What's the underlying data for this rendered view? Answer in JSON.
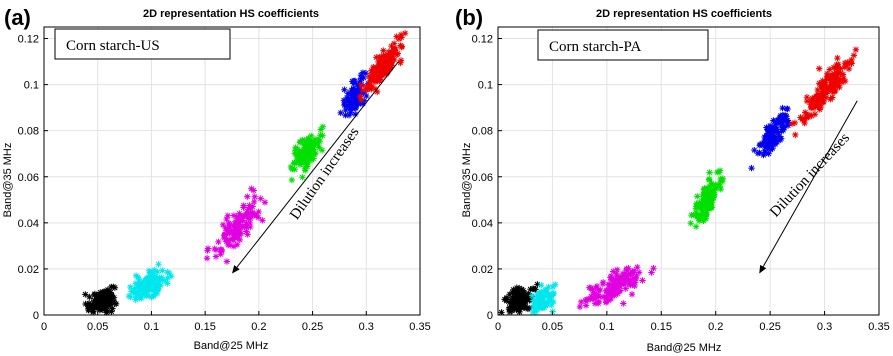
{
  "chart_data": [
    {
      "type": "scatter",
      "panel_label": "(a)",
      "title": "2D representation HS coefficients",
      "xlabel": "Band@25 MHz",
      "ylabel": "Band@35 MHz",
      "xlim": [
        0,
        0.35
      ],
      "ylim": [
        0,
        0.125
      ],
      "xticks": [
        0,
        0.05,
        0.1,
        0.15,
        0.2,
        0.25,
        0.3,
        0.35
      ],
      "xtick_labels": [
        "0",
        "0.05",
        "0.1",
        "0.15",
        "0.2",
        "0.25",
        "0.3",
        "0.35"
      ],
      "yticks": [
        0,
        0.02,
        0.04,
        0.06,
        0.08,
        0.1,
        0.12
      ],
      "ytick_labels": [
        "0",
        "0.02",
        "0.04",
        "0.06",
        "0.08",
        "0.1",
        "0.12"
      ],
      "grid": true,
      "marker": "*",
      "legend_box": "Corn starch-US",
      "annotation": {
        "text": "Dilution increases",
        "arrow_from": [
          0.33,
          0.11
        ],
        "arrow_to": [
          0.175,
          0.018
        ]
      },
      "series": [
        {
          "color": "#000000",
          "cx": 0.053,
          "cy": 0.006,
          "sx": 0.0065,
          "sy": 0.0025,
          "rho": 0.3,
          "n": 130
        },
        {
          "color": "#00e6ee",
          "cx": 0.098,
          "cy": 0.013,
          "sx": 0.009,
          "sy": 0.0032,
          "rho": 0.6,
          "n": 110
        },
        {
          "color": "#e000e0",
          "cx": 0.18,
          "cy": 0.038,
          "sx": 0.011,
          "sy": 0.0065,
          "rho": 0.8,
          "n": 120
        },
        {
          "color": "#00e000",
          "cx": 0.245,
          "cy": 0.071,
          "sx": 0.0065,
          "sy": 0.0045,
          "rho": 0.7,
          "n": 110
        },
        {
          "color": "#0000ee",
          "cx": 0.29,
          "cy": 0.095,
          "sx": 0.0055,
          "sy": 0.0038,
          "rho": 0.6,
          "n": 100
        },
        {
          "color": "#ee0000",
          "cx": 0.315,
          "cy": 0.107,
          "sx": 0.009,
          "sy": 0.0055,
          "rho": 0.85,
          "n": 150
        }
      ]
    },
    {
      "type": "scatter",
      "panel_label": "(b)",
      "title": "2D representation HS coefficients",
      "xlabel": "Band@25 MHz",
      "ylabel": "Band@35 MHz",
      "xlim": [
        0,
        0.35
      ],
      "ylim": [
        0,
        0.125
      ],
      "xticks": [
        0,
        0.05,
        0.1,
        0.15,
        0.2,
        0.25,
        0.3,
        0.35
      ],
      "xtick_labels": [
        "0",
        "0.05",
        "0.1",
        "0.15",
        "0.2",
        "0.25",
        "0.3",
        "0.35"
      ],
      "yticks": [
        0,
        0.02,
        0.04,
        0.06,
        0.08,
        0.1,
        0.12
      ],
      "ytick_labels": [
        "0",
        "0.02",
        "0.04",
        "0.06",
        "0.08",
        "0.1",
        "0.12"
      ],
      "grid": true,
      "marker": "*",
      "legend_box": "Corn starch-PA",
      "annotation": {
        "text": "Dilution increases",
        "arrow_from": [
          0.33,
          0.093
        ],
        "arrow_to": [
          0.24,
          0.018
        ]
      },
      "series": [
        {
          "color": "#000000",
          "cx": 0.02,
          "cy": 0.006,
          "sx": 0.0055,
          "sy": 0.003,
          "rho": 0.3,
          "n": 120
        },
        {
          "color": "#00e6ee",
          "cx": 0.042,
          "cy": 0.007,
          "sx": 0.0045,
          "sy": 0.003,
          "rho": 0.4,
          "n": 70
        },
        {
          "color": "#e000e0",
          "cx": 0.11,
          "cy": 0.013,
          "sx": 0.015,
          "sy": 0.0045,
          "rho": 0.75,
          "n": 140
        },
        {
          "color": "#00e000",
          "cx": 0.192,
          "cy": 0.05,
          "sx": 0.007,
          "sy": 0.0055,
          "rho": 0.75,
          "n": 120
        },
        {
          "color": "#0000ee",
          "cx": 0.253,
          "cy": 0.078,
          "sx": 0.0065,
          "sy": 0.0045,
          "rho": 0.65,
          "n": 110
        },
        {
          "color": "#ee0000",
          "cx": 0.3,
          "cy": 0.097,
          "sx": 0.011,
          "sy": 0.0065,
          "rho": 0.88,
          "n": 170
        }
      ]
    }
  ]
}
